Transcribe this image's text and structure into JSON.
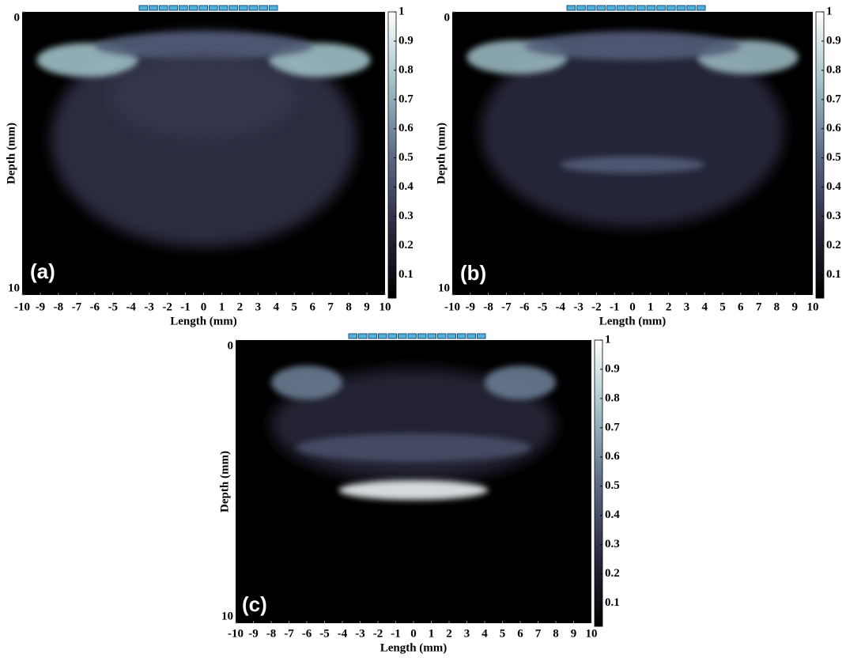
{
  "chart_data": [
    {
      "type": "heatmap",
      "panel_label": "(a)",
      "xlabel": "Length (mm)",
      "ylabel": "Depth (mm)",
      "xlim": [
        -10,
        10
      ],
      "xticks": [
        -10,
        -9,
        -8,
        -7,
        -6,
        -5,
        -4,
        -3,
        -2,
        -1,
        0,
        1,
        2,
        3,
        4,
        5,
        6,
        7,
        8,
        9,
        10
      ],
      "ylim": [
        0,
        10
      ],
      "yticks": [
        0,
        10
      ],
      "y_inverted": true,
      "clim": [
        0.02,
        1
      ],
      "cticks": [
        0.1,
        0.2,
        0.3,
        0.4,
        0.5,
        0.6,
        0.7,
        0.8,
        0.9,
        1
      ],
      "colormap": [
        "#000000",
        "#2a2a40",
        "#5d6a86",
        "#9fc0c6",
        "#ffffff"
      ]
    },
    {
      "type": "heatmap",
      "panel_label": "(b)",
      "xlabel": "Length (mm)",
      "ylabel": "Depth (mm)",
      "xlim": [
        -10,
        10
      ],
      "xticks": [
        -10,
        -9,
        -8,
        -7,
        -6,
        -5,
        -4,
        -3,
        -2,
        -1,
        0,
        1,
        2,
        3,
        4,
        5,
        6,
        7,
        8,
        9,
        10
      ],
      "ylim": [
        0,
        10
      ],
      "yticks": [
        0,
        10
      ],
      "y_inverted": true,
      "clim": [
        0.02,
        1
      ],
      "cticks": [
        0.1,
        0.2,
        0.3,
        0.4,
        0.5,
        0.6,
        0.7,
        0.8,
        0.9,
        1
      ],
      "colormap": [
        "#000000",
        "#2a2a40",
        "#5d6a86",
        "#9fc0c6",
        "#ffffff"
      ]
    },
    {
      "type": "heatmap",
      "panel_label": "(c)",
      "xlabel": "Length (mm)",
      "ylabel": "Depth (mm)",
      "xlim": [
        -10,
        10
      ],
      "xticks": [
        -10,
        -9,
        -8,
        -7,
        -6,
        -5,
        -4,
        -3,
        -2,
        -1,
        0,
        1,
        2,
        3,
        4,
        5,
        6,
        7,
        8,
        9,
        10
      ],
      "ylim": [
        0,
        10
      ],
      "yticks": [
        0,
        10
      ],
      "y_inverted": true,
      "clim": [
        0.02,
        1
      ],
      "cticks": [
        0.1,
        0.2,
        0.3,
        0.4,
        0.5,
        0.6,
        0.7,
        0.8,
        0.9,
        1
      ],
      "colormap": [
        "#000000",
        "#2a2a40",
        "#5d6a86",
        "#9fc0c6",
        "#ffffff"
      ]
    }
  ]
}
